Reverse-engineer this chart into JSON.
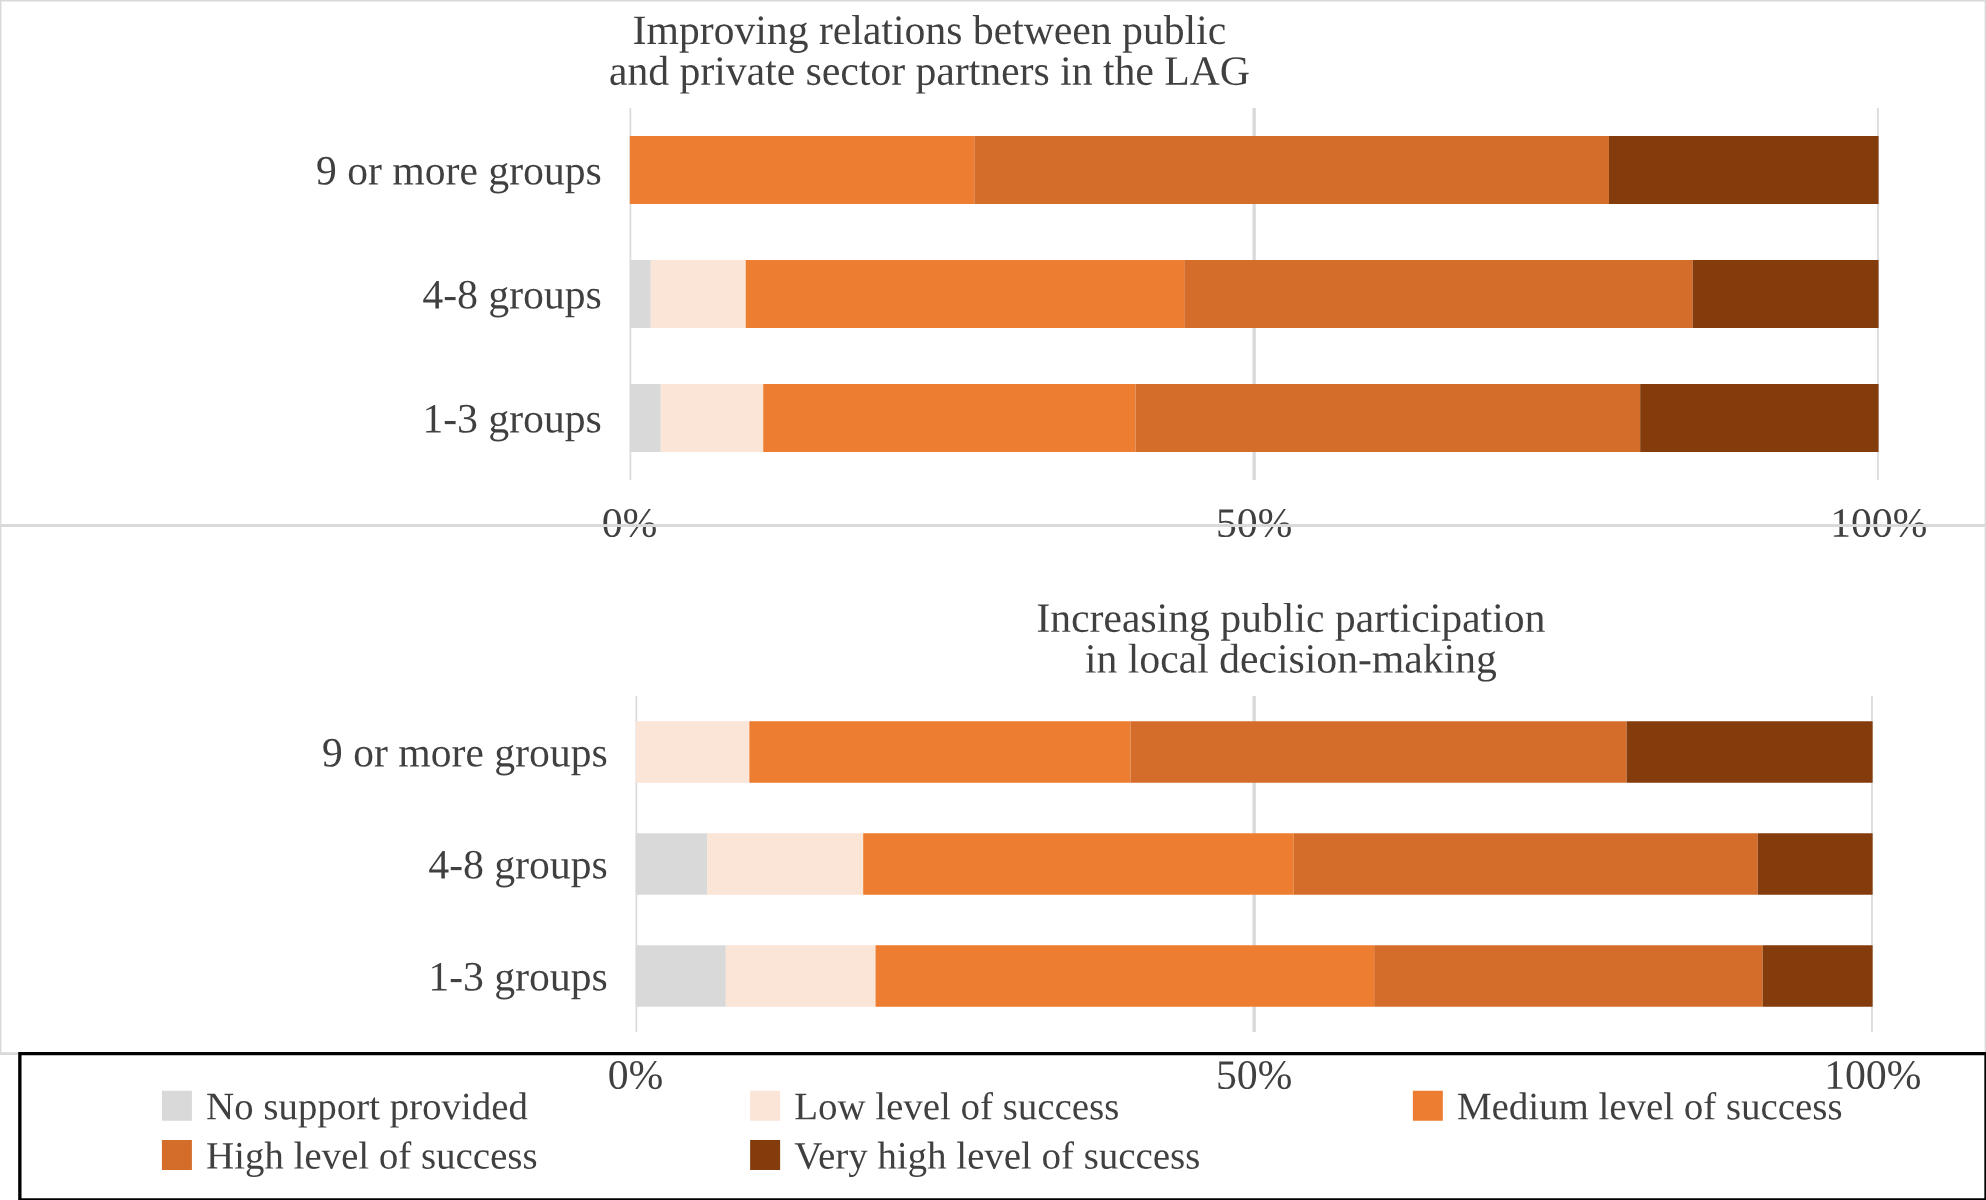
{
  "chart_data": [
    {
      "type": "bar",
      "orientation": "horizontal",
      "stacked": true,
      "title": "Improving relations between public\nand private sector partners in the LAG",
      "categories": [
        "9 or more groups",
        "4-8 groups",
        "1-3 groups"
      ],
      "series": [
        {
          "name": "No support provided",
          "color": "#d9d9d9",
          "values": [
            0,
            1.7,
            2.5
          ]
        },
        {
          "name": "Low level of success",
          "color": "#fbe5d6",
          "values": [
            0,
            7.6,
            8.2
          ]
        },
        {
          "name": "Medium level of success",
          "color": "#ed7d31",
          "values": [
            27.6,
            35.1,
            29.8
          ]
        },
        {
          "name": "High level of success",
          "color": "#d46d29",
          "values": [
            50.8,
            40.7,
            40.4
          ]
        },
        {
          "name": "Very high level of success",
          "color": "#843c0c",
          "values": [
            21.6,
            14.9,
            19.1
          ]
        }
      ],
      "xlim": [
        0,
        100
      ],
      "xticks": [
        {
          "value": 0,
          "label": "0%"
        },
        {
          "value": 50,
          "label": "50%"
        },
        {
          "value": 100,
          "label": "100%"
        }
      ],
      "grid": "x",
      "legend": "bottom"
    },
    {
      "type": "bar",
      "orientation": "horizontal",
      "stacked": true,
      "title": "Increasing public participation\nin local decision-making",
      "categories": [
        "9 or more groups",
        "4-8 groups",
        "1-3 groups"
      ],
      "series": [
        {
          "color": "#d9d9d9",
          "values": [
            0,
            5.8,
            7.3
          ]
        },
        {
          "color": "#fbe5d6",
          "values": [
            9.2,
            12.6,
            12.1
          ]
        },
        {
          "color": "#ed7d31",
          "values": [
            30.8,
            34.8,
            40.3
          ]
        },
        {
          "color": "#d46d29",
          "values": [
            40.1,
            37.5,
            31.4
          ]
        },
        {
          "color": "#843c0c",
          "values": [
            19.9,
            9.3,
            8.9
          ]
        }
      ],
      "xlim": [
        0,
        100
      ],
      "xticks": [
        {
          "value": 0,
          "label": "0%"
        },
        {
          "value": 50,
          "label": "50%"
        },
        {
          "value": 100,
          "label": "100%"
        }
      ],
      "grid": "x"
    }
  ]
}
